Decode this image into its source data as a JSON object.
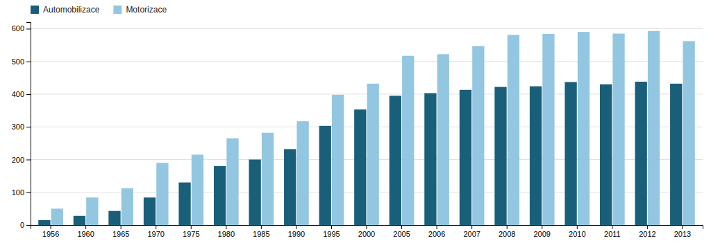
{
  "chart_data": {
    "type": "bar",
    "categories": [
      "1956",
      "1960",
      "1965",
      "1970",
      "1975",
      "1980",
      "1985",
      "1990",
      "1995",
      "2000",
      "2005",
      "2006",
      "2007",
      "2008",
      "2009",
      "2010",
      "2011",
      "2012",
      "2013"
    ],
    "series": [
      {
        "name": "Automobilizace",
        "color": "#1a5f7a",
        "values": [
          15,
          28,
          43,
          84,
          130,
          180,
          200,
          232,
          303,
          353,
          395,
          403,
          413,
          422,
          424,
          437,
          430,
          438,
          432
        ]
      },
      {
        "name": "Motorizace",
        "color": "#93c6e0",
        "values": [
          50,
          84,
          112,
          190,
          215,
          265,
          282,
          317,
          398,
          432,
          517,
          522,
          547,
          581,
          584,
          590,
          585,
          593,
          562
        ]
      }
    ],
    "ylim": [
      0,
      620
    ],
    "yticks": [
      0,
      100,
      200,
      300,
      400,
      500,
      600
    ],
    "grid": true,
    "legend": "upper left"
  }
}
